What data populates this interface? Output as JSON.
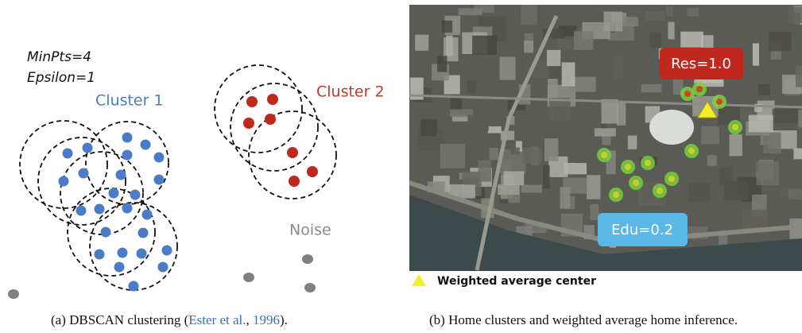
{
  "panel_a": {
    "params": [
      "MinPts=4",
      "Epsilon=1"
    ],
    "cluster_1": "Cluster 1",
    "cluster_2": "Cluster 2",
    "noise": "Noise",
    "caption": {
      "prefix": "(a)  DBSCAN clustering (",
      "cite_authors": "Ester et al.",
      "sep": ", ",
      "cite_year": "1996",
      "suffix": ")."
    }
  },
  "panel_b": {
    "res_label": "Res=1.0",
    "edu_label": "Edu=0.2",
    "legend": "Weighted average center",
    "caption": "(b)  Home clusters and weighted average home inference."
  }
}
